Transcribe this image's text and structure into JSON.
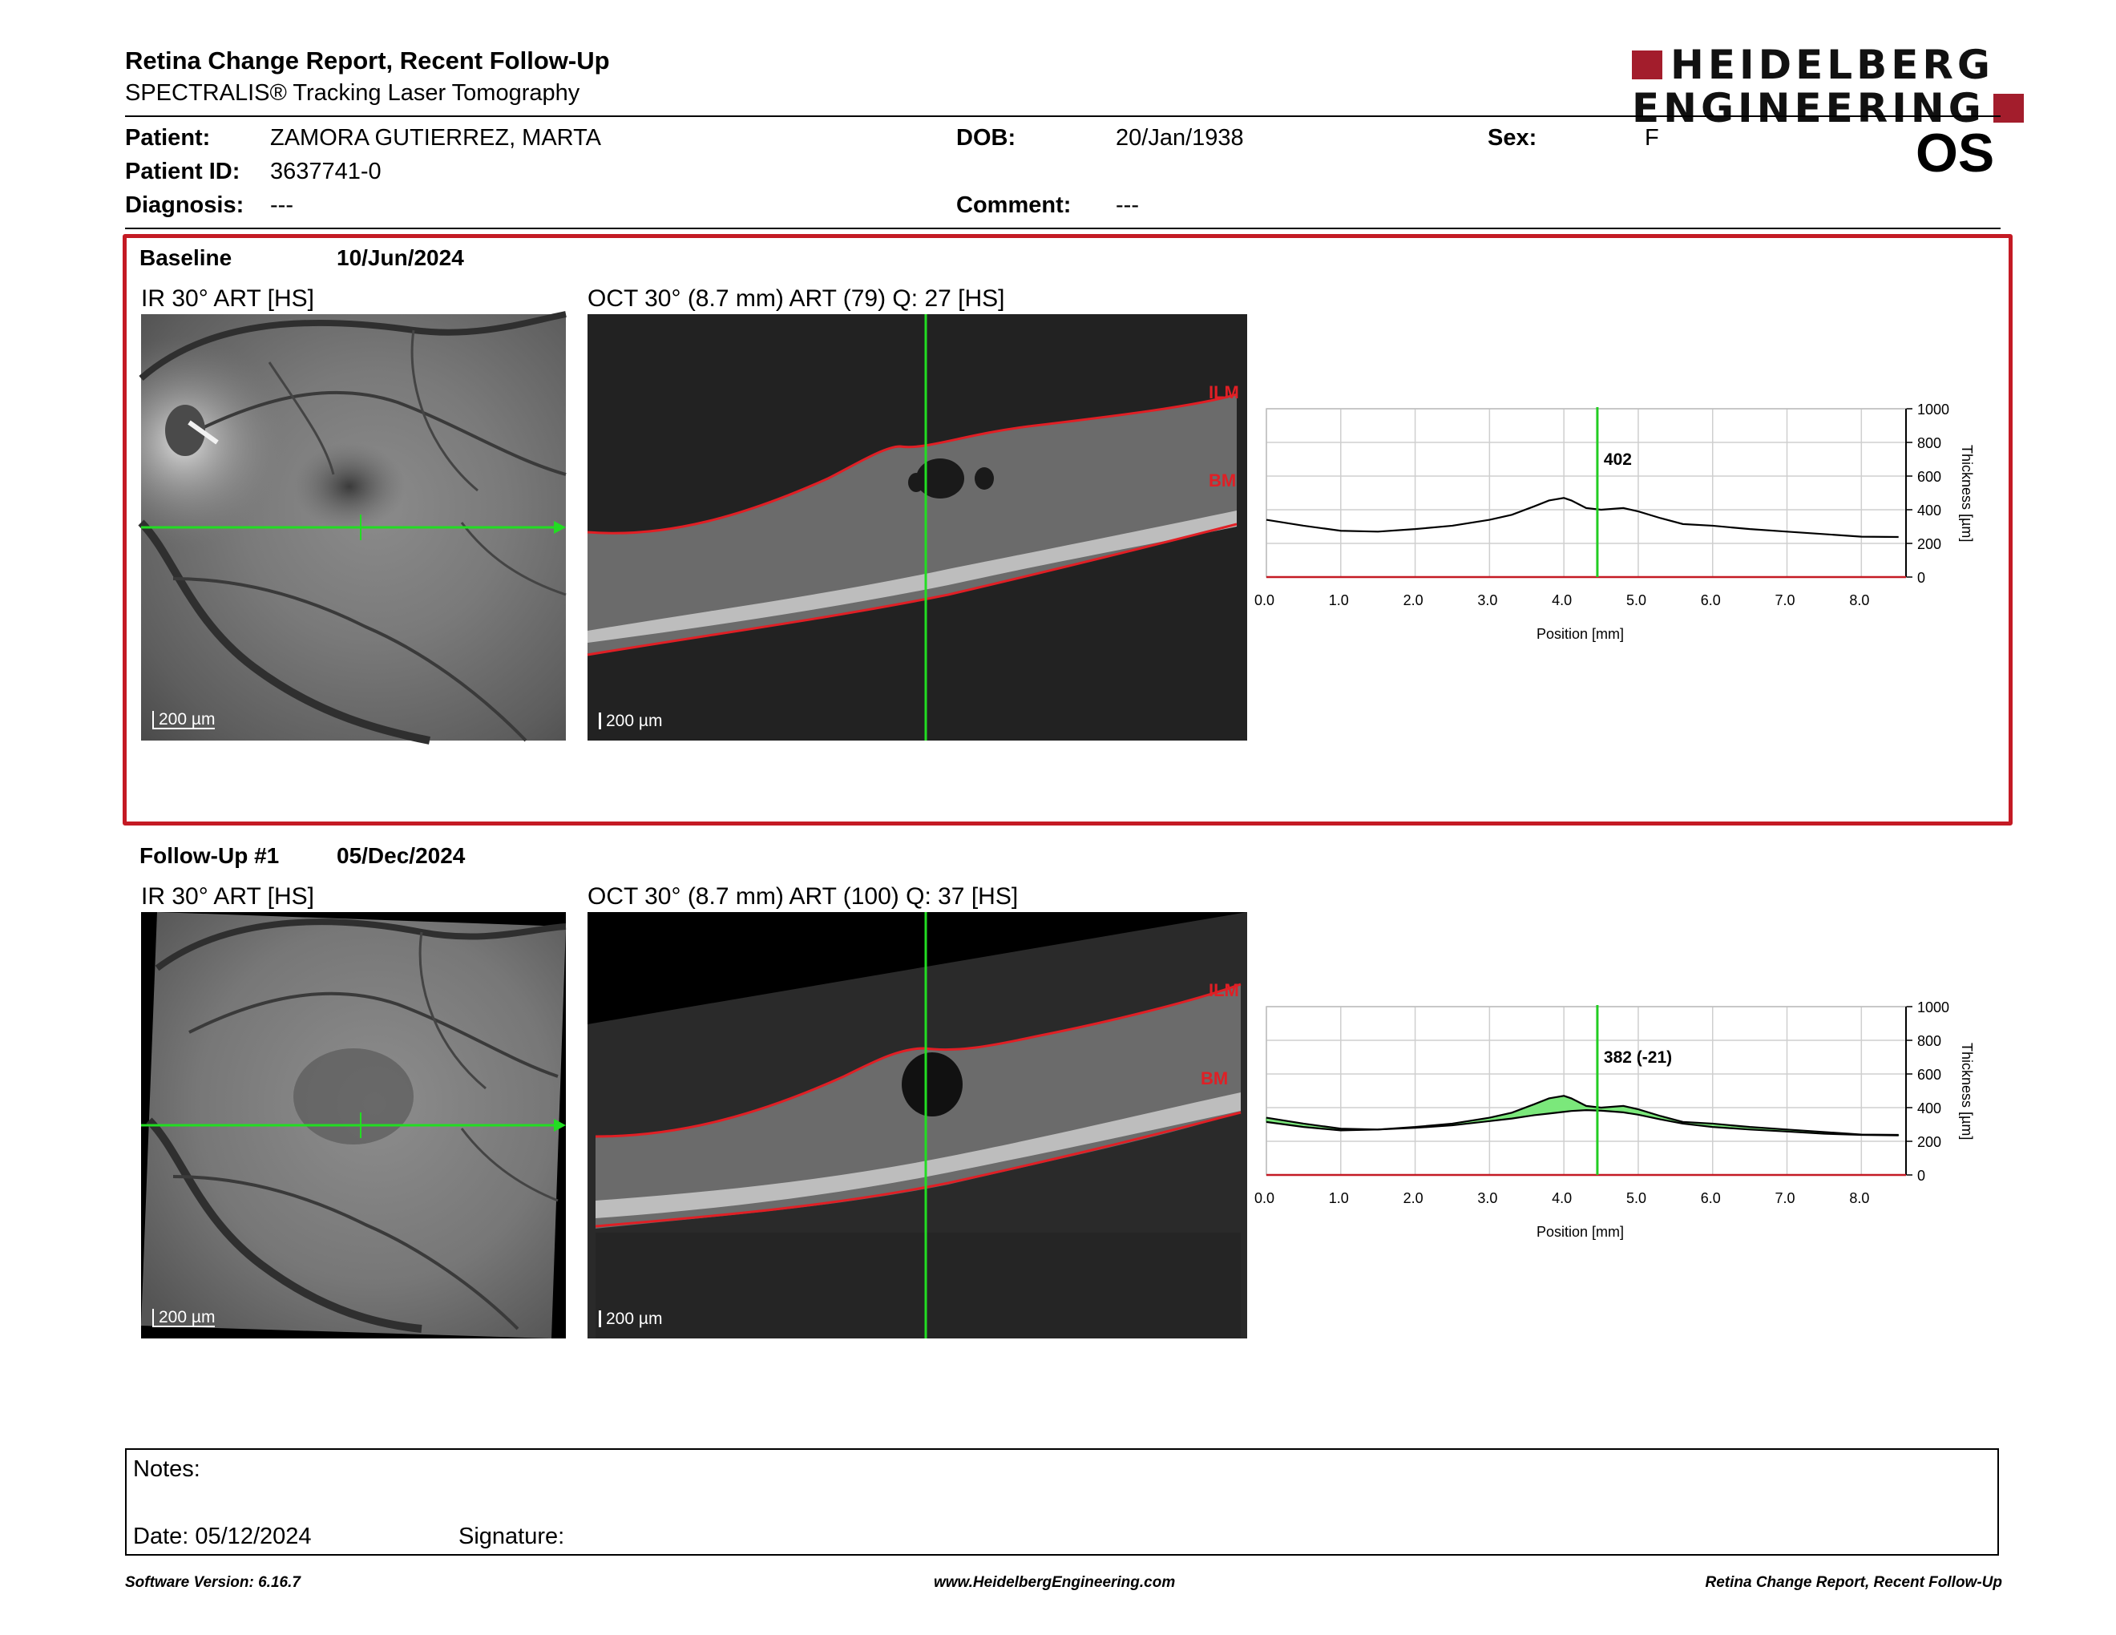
{
  "header": {
    "title": "Retina Change Report, Recent Follow-Up",
    "subtitle": "SPECTRALIS® Tracking Laser Tomography",
    "logo_line1": "HEIDELBERG",
    "logo_line2": "ENGINEERING",
    "eye": "OS"
  },
  "patient": {
    "patient_label": "Patient:",
    "patient_name": "ZAMORA GUTIERREZ, MARTA",
    "id_label": "Patient ID:",
    "id": "3637741-0",
    "diagnosis_label": "Diagnosis:",
    "diagnosis": "---",
    "dob_label": "DOB:",
    "dob": "20/Jan/1938",
    "comment_label": "Comment:",
    "comment": "---",
    "sex_label": "Sex:",
    "sex": "F"
  },
  "baseline": {
    "label": "Baseline",
    "date": "10/Jun/2024",
    "ir_caption": "IR 30° ART [HS]",
    "oct_caption": "OCT 30° (8.7 mm) ART (79) Q: 27 [HS]",
    "scale": "200 µm",
    "ilm": "ILM",
    "bm": "BM"
  },
  "followup": {
    "label": "Follow-Up #1",
    "date": "05/Dec/2024",
    "ir_caption": "IR 30° ART [HS]",
    "oct_caption": "OCT 30° (8.7 mm) ART (100) Q: 37 [HS]",
    "scale": "200 µm",
    "ilm": "ILM",
    "bm": "BM"
  },
  "chart_data": [
    {
      "type": "line",
      "xlabel": "Position [mm]",
      "ylabel": "Thickness [µm]",
      "xlim": [
        0,
        8.6
      ],
      "ylim": [
        0,
        1000
      ],
      "xticks": [
        "0.0",
        "1.0",
        "2.0",
        "3.0",
        "4.0",
        "5.0",
        "6.0",
        "7.0",
        "8.0"
      ],
      "yticks": [
        "0",
        "200",
        "400",
        "600",
        "800",
        "1000"
      ],
      "cursor_x": 4.45,
      "cursor_label": "402",
      "series": [
        {
          "x": [
            0.0,
            0.5,
            1.0,
            1.5,
            2.0,
            2.5,
            3.0,
            3.3,
            3.6,
            3.8,
            4.0,
            4.1,
            4.3,
            4.5,
            4.8,
            5.0,
            5.3,
            5.6,
            6.0,
            6.5,
            7.0,
            7.5,
            8.0,
            8.5
          ],
          "y": [
            340,
            305,
            275,
            270,
            285,
            305,
            340,
            370,
            420,
            455,
            470,
            455,
            410,
            400,
            410,
            390,
            350,
            315,
            305,
            285,
            270,
            255,
            240,
            238
          ]
        }
      ],
      "colors": {
        "line": "#000000",
        "cursor": "#22cc22",
        "baseline": "#c41a24"
      }
    },
    {
      "type": "area",
      "xlabel": "Position [mm]",
      "ylabel": "Thickness [µm]",
      "xlim": [
        0,
        8.6
      ],
      "ylim": [
        0,
        1000
      ],
      "xticks": [
        "0.0",
        "1.0",
        "2.0",
        "3.0",
        "4.0",
        "5.0",
        "6.0",
        "7.0",
        "8.0"
      ],
      "yticks": [
        "0",
        "200",
        "400",
        "600",
        "800",
        "1000"
      ],
      "cursor_x": 4.45,
      "cursor_label": "382 (-21)",
      "series": [
        {
          "x": [
            0.0,
            0.5,
            1.0,
            1.5,
            2.0,
            2.5,
            3.0,
            3.3,
            3.6,
            3.8,
            4.0,
            4.1,
            4.3,
            4.5,
            4.8,
            5.0,
            5.3,
            5.6,
            6.0,
            6.5,
            7.0,
            7.5,
            8.0,
            8.5
          ],
          "y": [
            315,
            285,
            265,
            270,
            280,
            295,
            320,
            335,
            355,
            365,
            375,
            380,
            385,
            382,
            372,
            358,
            330,
            305,
            285,
            270,
            258,
            245,
            238,
            235
          ]
        },
        {
          "x": [
            0.0,
            0.5,
            1.0,
            1.5,
            2.0,
            2.5,
            3.0,
            3.3,
            3.6,
            3.8,
            4.0,
            4.1,
            4.3,
            4.5,
            4.8,
            5.0,
            5.3,
            5.6,
            6.0,
            6.5,
            7.0,
            7.5,
            8.0,
            8.5
          ],
          "y": [
            340,
            305,
            275,
            270,
            285,
            305,
            340,
            370,
            420,
            455,
            470,
            455,
            410,
            400,
            410,
            390,
            350,
            315,
            305,
            285,
            270,
            255,
            240,
            238
          ]
        }
      ],
      "colors": {
        "line": "#000000",
        "fill": "#7be87b",
        "cursor": "#22cc22",
        "baseline": "#c41a24"
      }
    }
  ],
  "notes": {
    "label": "Notes:",
    "date_label": "Date: 05/12/2024",
    "signature_label": "Signature:"
  },
  "footer": {
    "version": "Software Version: 6.16.7",
    "website": "www.HeidelbergEngineering.com",
    "report": "Retina Change Report, Recent Follow-Up"
  }
}
